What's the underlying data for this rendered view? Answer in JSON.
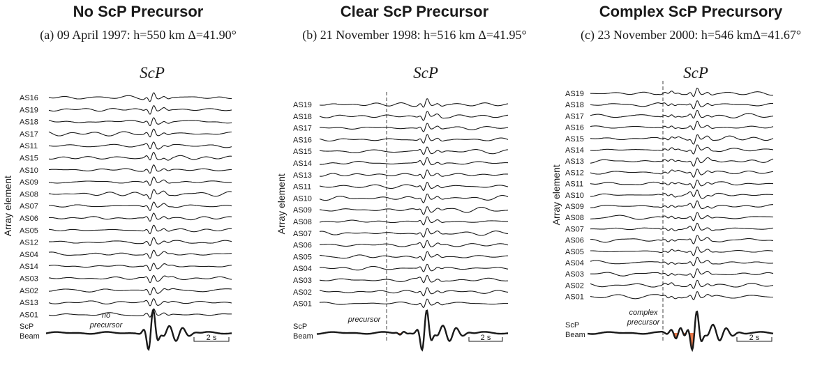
{
  "panels": [
    {
      "title": "No ScP Precursor",
      "subtitle": "(a) 09 April 1997: h=550 km Δ=41.90°",
      "phase_label": "ScP",
      "ylabel": "Array element",
      "stations": [
        "AS16",
        "AS19",
        "AS18",
        "AS17",
        "AS11",
        "AS15",
        "AS10",
        "AS09",
        "AS08",
        "AS07",
        "AS06",
        "AS05",
        "AS12",
        "AS04",
        "AS14",
        "AS03",
        "AS02",
        "AS13",
        "AS01"
      ],
      "beam_label_1": "ScP",
      "beam_label_2": "Beam",
      "annotation_1": "no",
      "annotation_2": "precursor",
      "scale_label": "2 s",
      "has_precursor_line": false,
      "precursor_fill": "none"
    },
    {
      "title": "Clear ScP Precursor",
      "subtitle": "(b) 21 November 1998: h=516 km Δ=41.95°",
      "phase_label": "ScP",
      "ylabel": "Array element",
      "stations": [
        "AS19",
        "AS18",
        "AS17",
        "AS16",
        "AS15",
        "AS14",
        "AS13",
        "AS11",
        "AS10",
        "AS09",
        "AS08",
        "AS07",
        "AS06",
        "AS05",
        "AS04",
        "AS03",
        "AS02",
        "AS01"
      ],
      "beam_label_1": "ScP",
      "beam_label_2": "Beam",
      "annotation_1": "",
      "annotation_2": "precursor",
      "scale_label": "2 s",
      "has_precursor_line": true,
      "precursor_fill": "small"
    },
    {
      "title": "Complex ScP Precursory",
      "subtitle": "(c) 23 November 2000: h=546 kmΔ=41.67°",
      "phase_label": "ScP",
      "ylabel": "Array element",
      "stations": [
        "AS19",
        "AS18",
        "AS17",
        "AS16",
        "AS15",
        "AS14",
        "AS13",
        "AS12",
        "AS11",
        "AS10",
        "AS09",
        "AS08",
        "AS07",
        "AS06",
        "AS05",
        "AS04",
        "AS03",
        "AS02",
        "AS01"
      ],
      "beam_label_1": "ScP",
      "beam_label_2": "Beam",
      "annotation_1": "complex",
      "annotation_2": "precursor",
      "scale_label": "2 s",
      "has_precursor_line": true,
      "precursor_fill": "large"
    }
  ],
  "colors": {
    "trace": "#1a1a1a",
    "dashed_line": "#888888",
    "precursor_fill": "#e8784a"
  }
}
